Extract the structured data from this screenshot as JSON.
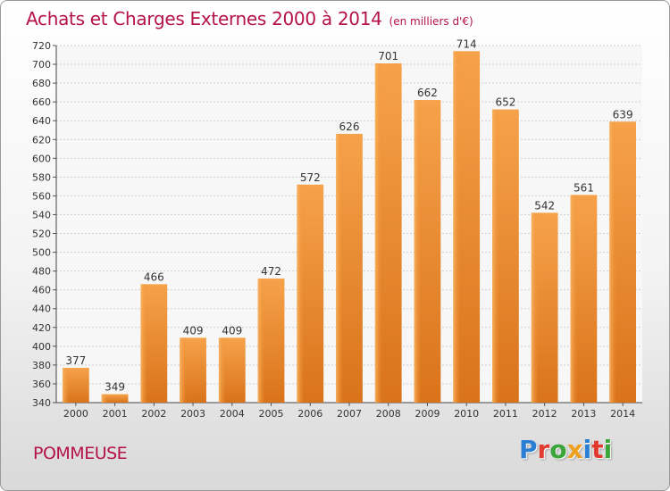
{
  "title": "Achats et Charges Externes 2000 à 2014",
  "unit": "(en milliers d'€)",
  "commune": "POMMEUSE",
  "logo": "Proxiti",
  "chart_data": {
    "type": "bar",
    "categories": [
      "2000",
      "2001",
      "2002",
      "2003",
      "2004",
      "2005",
      "2006",
      "2007",
      "2008",
      "2009",
      "2010",
      "2011",
      "2012",
      "2013",
      "2014"
    ],
    "values": [
      377,
      349,
      466,
      409,
      409,
      472,
      572,
      626,
      701,
      662,
      714,
      652,
      542,
      561,
      639
    ],
    "ylim": [
      340,
      720
    ],
    "yticks": [
      340,
      360,
      380,
      400,
      420,
      440,
      460,
      480,
      500,
      520,
      540,
      560,
      580,
      600,
      620,
      640,
      660,
      680,
      700,
      720
    ],
    "grid": true,
    "bar_color": "#f08c2b"
  }
}
